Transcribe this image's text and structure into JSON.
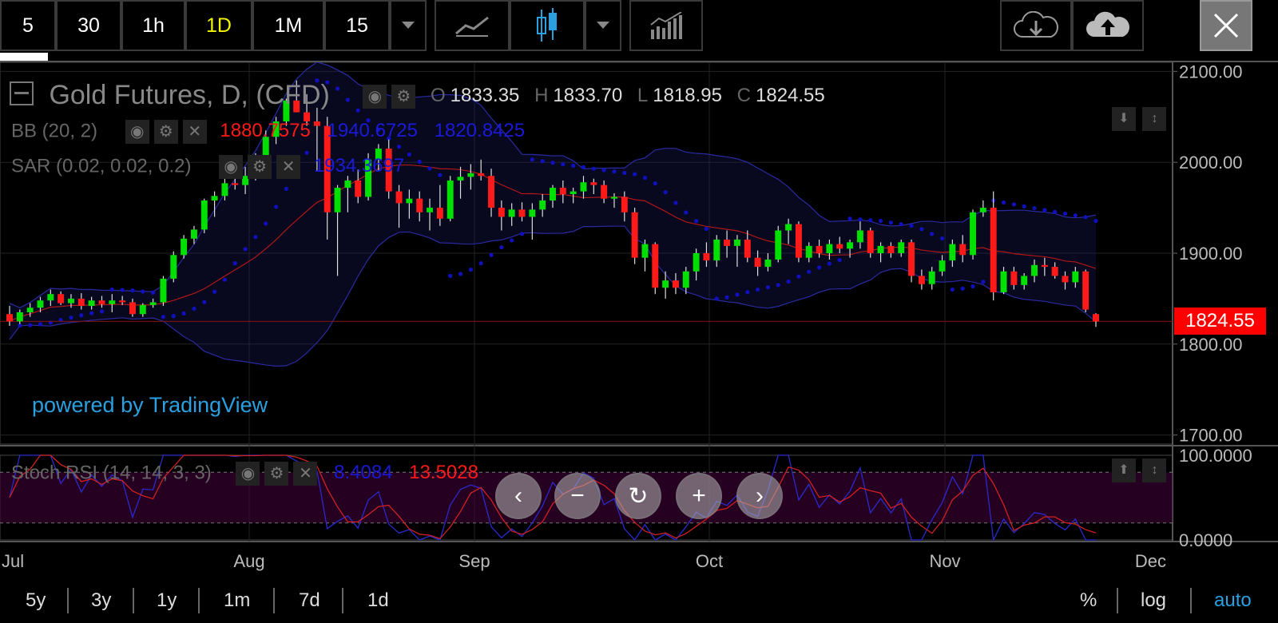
{
  "toolbar": {
    "intervals": [
      {
        "label": "5",
        "active": false
      },
      {
        "label": "30",
        "active": false
      },
      {
        "label": "1h",
        "active": false
      },
      {
        "label": "1D",
        "active": true
      },
      {
        "label": "1M",
        "active": false
      },
      {
        "label": "15",
        "active": false
      }
    ],
    "icons": [
      "interval-dropdown-icon",
      "line-chart-icon",
      "candlestick-icon",
      "chart-type-dropdown-icon",
      "indicators-icon",
      "cloud-download-icon",
      "cloud-upload-icon",
      "close-icon"
    ]
  },
  "main_legend": {
    "title": "Gold Futures, D, (CFD)",
    "o_label": "O",
    "o_value": "1833.35",
    "h_label": "H",
    "h_value": "1833.70",
    "l_label": "L",
    "l_value": "1818.95",
    "c_label": "C",
    "c_value": "1824.55"
  },
  "bb_legend": {
    "label": "BB (20, 2)",
    "basis": "1880.7575",
    "upper": "1940.6725",
    "lower": "1820.8425"
  },
  "sar_legend": {
    "label": "SAR (0.02, 0.02, 0.2)",
    "value": "1934.3697"
  },
  "stoch_legend": {
    "label": "Stoch RSI (14, 14, 3, 3)",
    "k": "8.4084",
    "d": "13.5028"
  },
  "watermark": "powered by TradingView",
  "price_tag": "1824.55",
  "bottom_bar": {
    "ranges": [
      "5y",
      "3y",
      "1y",
      "1m",
      "7d",
      "1d"
    ],
    "percent": "%",
    "log": "log",
    "auto": "auto"
  },
  "colors": {
    "up": "#00e000",
    "down": "#ff1a1a",
    "bb_band": "#1a1a6e",
    "sar": "#1010c0",
    "accent": "#2aa0e0",
    "active_interval": "#f4f400"
  },
  "chart_data": {
    "type": "candlestick",
    "title": "Gold Futures, D, (CFD)",
    "x_tick_labels": [
      "Jul",
      "Aug",
      "Sep",
      "Oct",
      "Nov",
      "Dec"
    ],
    "y_tick_labels": [
      "2100.00",
      "2000.00",
      "1900.00",
      "1800.00",
      "1700.00"
    ],
    "ylim": [
      1690,
      2110
    ],
    "stoch_tick_labels": [
      "100.0000",
      "0.0000"
    ],
    "stoch_ylim": [
      0,
      100
    ],
    "candles": [
      [
        1833,
        1842,
        1820,
        1825
      ],
      [
        1825,
        1838,
        1822,
        1835
      ],
      [
        1835,
        1845,
        1830,
        1840
      ],
      [
        1840,
        1852,
        1835,
        1848
      ],
      [
        1848,
        1860,
        1842,
        1855
      ],
      [
        1855,
        1858,
        1843,
        1845
      ],
      [
        1845,
        1855,
        1840,
        1850
      ],
      [
        1850,
        1856,
        1838,
        1842
      ],
      [
        1842,
        1852,
        1838,
        1848
      ],
      [
        1848,
        1853,
        1840,
        1844
      ],
      [
        1844,
        1855,
        1835,
        1848
      ],
      [
        1848,
        1853,
        1843,
        1846
      ],
      [
        1846,
        1850,
        1830,
        1833
      ],
      [
        1833,
        1845,
        1830,
        1843
      ],
      [
        1843,
        1850,
        1840,
        1846
      ],
      [
        1846,
        1875,
        1842,
        1872
      ],
      [
        1872,
        1902,
        1868,
        1898
      ],
      [
        1898,
        1920,
        1894,
        1916
      ],
      [
        1916,
        1930,
        1910,
        1926
      ],
      [
        1926,
        1960,
        1922,
        1958
      ],
      [
        1958,
        1968,
        1940,
        1963
      ],
      [
        1963,
        2000,
        1958,
        1977
      ],
      [
        1977,
        1990,
        1970,
        1975
      ],
      [
        1975,
        1995,
        1965,
        1985
      ],
      [
        1985,
        2010,
        1980,
        2000
      ],
      [
        2000,
        2035,
        1995,
        2028
      ],
      [
        2028,
        2050,
        2020,
        2045
      ],
      [
        2045,
        2070,
        2040,
        2068
      ],
      [
        2068,
        2090,
        2055,
        2055
      ],
      [
        2055,
        2075,
        2040,
        2045
      ],
      [
        2045,
        2060,
        1990,
        2040
      ],
      [
        2040,
        2050,
        1915,
        1945
      ],
      [
        1945,
        1975,
        1875,
        1972
      ],
      [
        1972,
        1985,
        1945,
        1980
      ],
      [
        1980,
        1992,
        1955,
        1962
      ],
      [
        1962,
        2010,
        1958,
        2003
      ],
      [
        2003,
        2020,
        1990,
        2015
      ],
      [
        2015,
        2025,
        1960,
        1968
      ],
      [
        1968,
        1975,
        1928,
        1955
      ],
      [
        1955,
        1970,
        1938,
        1960
      ],
      [
        1960,
        1968,
        1935,
        1945
      ],
      [
        1945,
        1960,
        1925,
        1950
      ],
      [
        1950,
        1975,
        1930,
        1938
      ],
      [
        1938,
        1985,
        1935,
        1980
      ],
      [
        1980,
        1995,
        1960,
        1984
      ],
      [
        1984,
        1998,
        1970,
        1988
      ],
      [
        1988,
        2003,
        1980,
        1985
      ],
      [
        1985,
        1993,
        1940,
        1950
      ],
      [
        1950,
        1958,
        1925,
        1940
      ],
      [
        1940,
        1955,
        1930,
        1948
      ],
      [
        1948,
        1956,
        1935,
        1940
      ],
      [
        1940,
        1955,
        1915,
        1948
      ],
      [
        1948,
        1965,
        1940,
        1958
      ],
      [
        1958,
        1975,
        1950,
        1972
      ],
      [
        1972,
        1980,
        1955,
        1965
      ],
      [
        1965,
        1972,
        1955,
        1968
      ],
      [
        1968,
        1985,
        1960,
        1978
      ],
      [
        1978,
        1982,
        1965,
        1975
      ],
      [
        1975,
        1980,
        1955,
        1960
      ],
      [
        1960,
        1966,
        1950,
        1962
      ],
      [
        1962,
        1968,
        1935,
        1945
      ],
      [
        1945,
        1950,
        1888,
        1895
      ],
      [
        1895,
        1915,
        1880,
        1910
      ],
      [
        1910,
        1912,
        1855,
        1862
      ],
      [
        1862,
        1880,
        1850,
        1870
      ],
      [
        1870,
        1878,
        1855,
        1862
      ],
      [
        1862,
        1885,
        1855,
        1880
      ],
      [
        1880,
        1905,
        1870,
        1900
      ],
      [
        1900,
        1912,
        1885,
        1892
      ],
      [
        1892,
        1920,
        1885,
        1915
      ],
      [
        1915,
        1925,
        1895,
        1908
      ],
      [
        1908,
        1920,
        1885,
        1915
      ],
      [
        1915,
        1925,
        1890,
        1895
      ],
      [
        1895,
        1903,
        1875,
        1885
      ],
      [
        1885,
        1900,
        1880,
        1893
      ],
      [
        1893,
        1930,
        1890,
        1925
      ],
      [
        1925,
        1938,
        1910,
        1932
      ],
      [
        1932,
        1935,
        1890,
        1895
      ],
      [
        1895,
        1912,
        1890,
        1908
      ],
      [
        1908,
        1915,
        1895,
        1900
      ],
      [
        1900,
        1915,
        1893,
        1910
      ],
      [
        1910,
        1918,
        1900,
        1905
      ],
      [
        1905,
        1915,
        1895,
        1912
      ],
      [
        1912,
        1935,
        1905,
        1925
      ],
      [
        1925,
        1928,
        1895,
        1900
      ],
      [
        1900,
        1912,
        1890,
        1908
      ],
      [
        1908,
        1912,
        1895,
        1900
      ],
      [
        1900,
        1915,
        1896,
        1912
      ],
      [
        1912,
        1915,
        1868,
        1875
      ],
      [
        1875,
        1882,
        1860,
        1866
      ],
      [
        1866,
        1885,
        1860,
        1880
      ],
      [
        1880,
        1898,
        1875,
        1892
      ],
      [
        1892,
        1915,
        1885,
        1910
      ],
      [
        1910,
        1920,
        1890,
        1898
      ],
      [
        1898,
        1948,
        1893,
        1945
      ],
      [
        1945,
        1958,
        1940,
        1950
      ],
      [
        1950,
        1968,
        1848,
        1857
      ],
      [
        1857,
        1885,
        1855,
        1880
      ],
      [
        1880,
        1885,
        1860,
        1865
      ],
      [
        1865,
        1878,
        1860,
        1875
      ],
      [
        1875,
        1893,
        1868,
        1887
      ],
      [
        1887,
        1895,
        1875,
        1885
      ],
      [
        1885,
        1890,
        1872,
        1875
      ],
      [
        1875,
        1880,
        1860,
        1868
      ],
      [
        1868,
        1885,
        1862,
        1880
      ],
      [
        1880,
        1882,
        1835,
        1838
      ],
      [
        1833,
        1834,
        1819,
        1825
      ]
    ]
  }
}
